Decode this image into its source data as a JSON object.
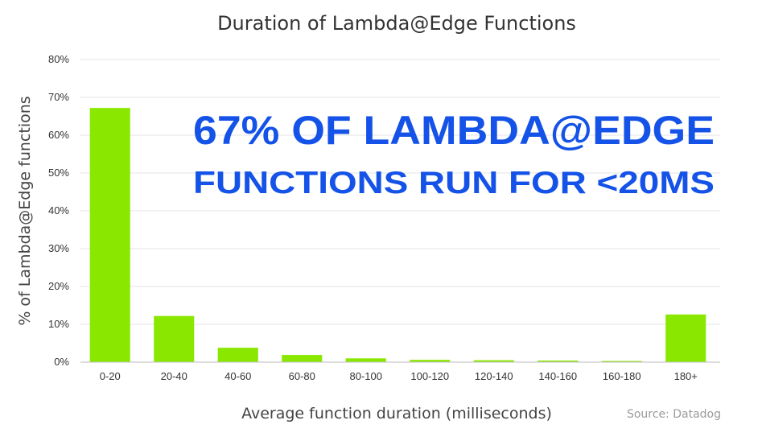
{
  "chart_data": {
    "type": "bar",
    "title": "Duration of Lambda@Edge Functions",
    "xlabel": "Average function duration (milliseconds)",
    "ylabel": "% of Lambda@Edge functions",
    "categories": [
      "0-20",
      "20-40",
      "40-60",
      "60-80",
      "80-100",
      "100-120",
      "120-140",
      "140-160",
      "160-180",
      "180+"
    ],
    "values": [
      67.2,
      12.2,
      3.8,
      1.9,
      1.0,
      0.6,
      0.5,
      0.4,
      0.3,
      12.6
    ],
    "ylim": [
      0,
      80
    ],
    "yticks": [
      "0%",
      "10%",
      "20%",
      "30%",
      "40%",
      "50%",
      "60%",
      "70%",
      "80%"
    ],
    "grid": true,
    "bar_color": "#8ae800",
    "annotation": {
      "line1": "67% OF LAMBDA@EDGE",
      "line2": "FUNCTIONS RUN FOR <20MS",
      "color": "#1452e8"
    },
    "source": "Source: Datadog"
  }
}
